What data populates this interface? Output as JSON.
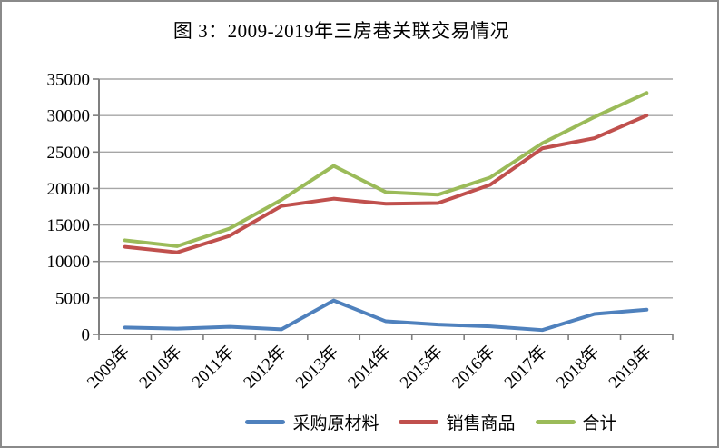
{
  "chart": {
    "title": "图 3：2009-2019年三房巷关联交易情况"
  },
  "chart_data": {
    "type": "line",
    "title": "图 3：2009-2019年三房巷关联交易情况",
    "categories": [
      "2009年",
      "2010年",
      "2011年",
      "2012年",
      "2013年",
      "2014年",
      "2015年",
      "2016年",
      "2017年",
      "2018年",
      "2019年"
    ],
    "series": [
      {
        "name": "采购原材料",
        "color": "#4F81BD",
        "values": [
          950,
          800,
          1050,
          700,
          4650,
          1800,
          1350,
          1100,
          600,
          2800,
          3400
        ]
      },
      {
        "name": "销售商品",
        "color": "#C0504D",
        "values": [
          12000,
          11250,
          13500,
          17600,
          18600,
          17900,
          18000,
          20500,
          25500,
          26900,
          30000
        ]
      },
      {
        "name": "合计",
        "color": "#9BBB59",
        "values": [
          12900,
          12100,
          14500,
          18450,
          23100,
          19500,
          19150,
          21500,
          26200,
          29800,
          33100
        ]
      }
    ],
    "xlabel": "",
    "ylabel": "",
    "ylim": [
      0,
      35000
    ],
    "ytick_step": 5000,
    "grid": true,
    "legend_position": "bottom",
    "axis_color": "#7F7F7F",
    "grid_color": "#A6A6A6",
    "tick_label_color": "#000000"
  }
}
